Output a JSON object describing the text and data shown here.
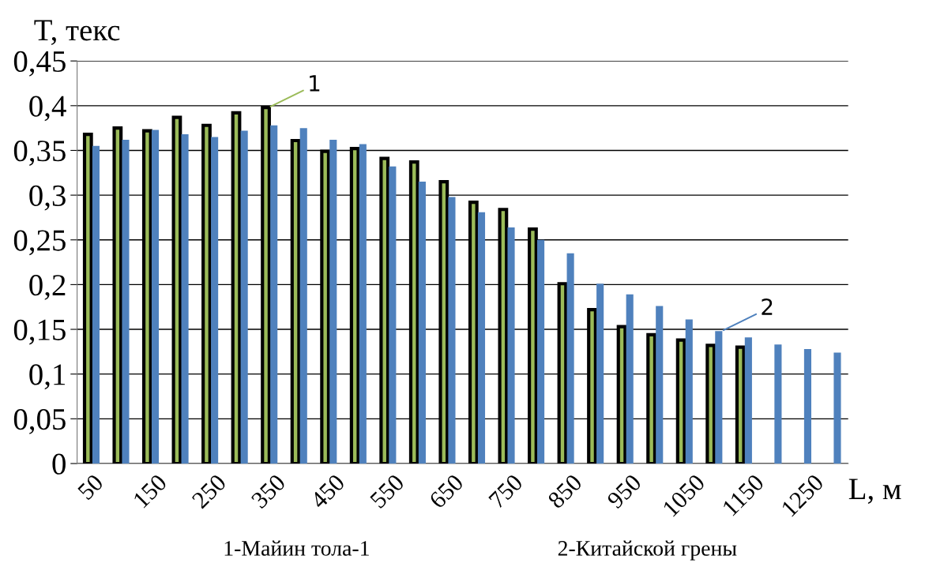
{
  "chart_data": {
    "type": "bar",
    "xlabel": "L, м",
    "ylabel": "T, текс",
    "categories": [
      "50",
      null,
      "150",
      null,
      "250",
      null,
      "350",
      null,
      "450",
      null,
      "550",
      null,
      "650",
      null,
      "750",
      null,
      "850",
      null,
      "950",
      null,
      "1050",
      null,
      "1150",
      null,
      "1250",
      null
    ],
    "series": [
      {
        "name": "1",
        "color": "#9bbb59",
        "values": [
          0.368,
          0.375,
          0.372,
          0.387,
          0.378,
          0.392,
          0.398,
          0.361,
          0.349,
          0.352,
          0.341,
          0.337,
          0.315,
          0.292,
          0.284,
          0.262,
          0.201,
          0.172,
          0.153,
          0.144,
          0.138,
          0.132,
          0.13,
          null,
          null,
          null
        ]
      },
      {
        "name": "2",
        "color": "#4f81bd",
        "values": [
          0.355,
          0.362,
          0.373,
          0.368,
          0.365,
          0.372,
          0.378,
          0.375,
          0.362,
          0.357,
          0.332,
          0.315,
          0.298,
          0.281,
          0.264,
          0.25,
          0.235,
          0.201,
          0.189,
          0.176,
          0.161,
          0.148,
          0.141,
          0.133,
          0.128,
          0.124
        ]
      }
    ],
    "ylim": [
      0,
      0.45
    ],
    "yticks": [
      0,
      {
        "value": 0.05,
        "label": "0,05"
      },
      {
        "value": 0.1,
        "label": "0,1"
      },
      {
        "value": 0.15,
        "label": "0,15"
      },
      {
        "value": 0.2,
        "label": "0,2"
      },
      {
        "value": 0.25,
        "label": "0,25"
      },
      {
        "value": 0.3,
        "label": "0,3"
      },
      {
        "value": 0.35,
        "label": "0,35"
      },
      {
        "value": 0.4,
        "label": "0,4"
      },
      {
        "value": 0.45,
        "label": "0,45"
      }
    ],
    "grid": "y",
    "legend": false,
    "annotations": [
      "1-Майин тола-1",
      "2-Китайской грены"
    ]
  }
}
